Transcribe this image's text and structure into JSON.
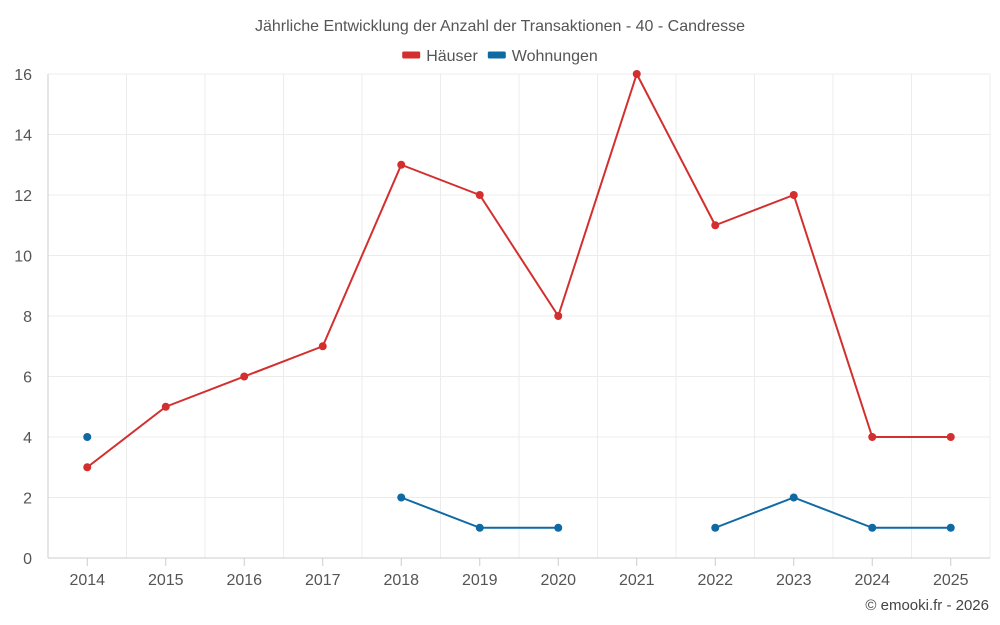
{
  "chart_data": {
    "type": "line",
    "title": "Jährliche Entwicklung der Anzahl der Transaktionen - 40 - Candresse",
    "x": [
      "2014",
      "2015",
      "2016",
      "2017",
      "2018",
      "2019",
      "2020",
      "2021",
      "2022",
      "2023",
      "2024",
      "2025"
    ],
    "ylim": [
      0,
      16
    ],
    "yticks": [
      0,
      2,
      4,
      6,
      8,
      10,
      12,
      14,
      16
    ],
    "grid": true,
    "legend_position": "top-center",
    "series": [
      {
        "name": "Häuser",
        "color": "#d32f2f",
        "values": [
          3,
          5,
          6,
          7,
          13,
          12,
          8,
          16,
          11,
          12,
          4,
          4
        ]
      },
      {
        "name": "Wohnungen",
        "color": "#0f6aa3",
        "values": [
          4,
          null,
          null,
          null,
          2,
          1,
          1,
          null,
          1,
          2,
          1,
          1
        ]
      }
    ]
  },
  "credit": "© emooki.fr - 2026"
}
